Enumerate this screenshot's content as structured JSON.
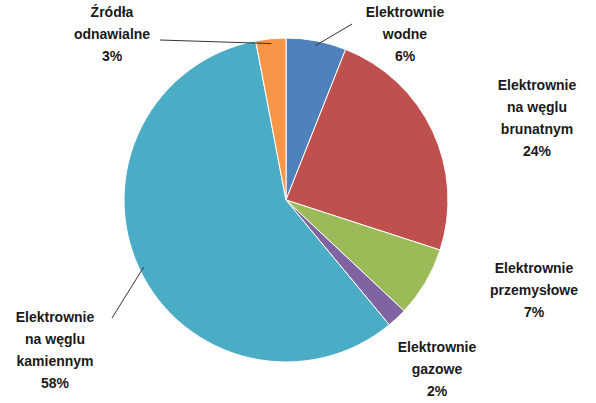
{
  "chart_data": {
    "type": "pie",
    "categories": [
      "Elektrownie wodne",
      "Elektrownie na węglu brunatnym",
      "Elektrownie przemysłowe",
      "Elektrownie gazowe",
      "Elektrownie na węglu kamiennym",
      "Źródła odnawialne"
    ],
    "values": [
      6,
      24,
      7,
      2,
      58,
      3
    ],
    "value_labels": [
      "6%",
      "24%",
      "7%",
      "2%",
      "58%",
      "3%"
    ],
    "colors": [
      "#4f81bd",
      "#c0504d",
      "#9bbb59",
      "#8064a2",
      "#4bacc6",
      "#f79646"
    ],
    "data_labels": true
  }
}
